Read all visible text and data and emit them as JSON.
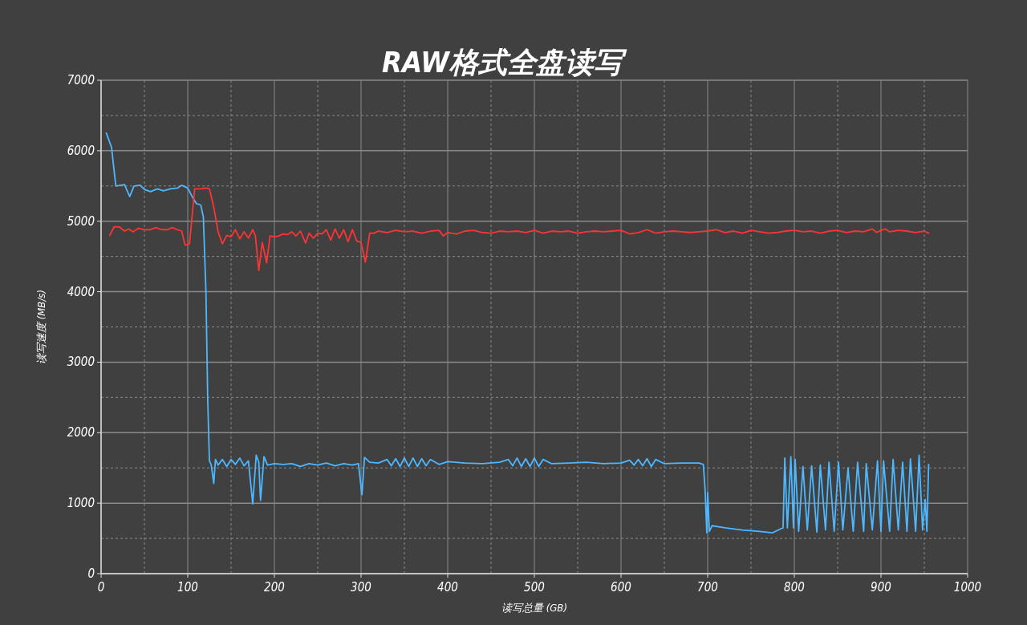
{
  "chart_data": {
    "type": "line",
    "title": "RAW格式全盘读写",
    "xlabel": "读写总量 (GB)",
    "ylabel": "读写速度 (MB/s)",
    "xlim": [
      0,
      1000
    ],
    "ylim": [
      0,
      7000
    ],
    "xticks": [
      0,
      100,
      200,
      300,
      400,
      500,
      600,
      700,
      800,
      900,
      1000
    ],
    "yticks": [
      0,
      1000,
      2000,
      3000,
      4000,
      5000,
      6000,
      7000
    ],
    "grid": true,
    "marker": "none",
    "line_style": "solid",
    "series": [
      {
        "color": "#4db8ff",
        "x": [
          6,
          12,
          17,
          27,
          33,
          38,
          45,
          50,
          57,
          65,
          72,
          80,
          88,
          93,
          100,
          105,
          110,
          115,
          118,
          121,
          123,
          125,
          127,
          130,
          132,
          135,
          140,
          145,
          150,
          155,
          160,
          165,
          170,
          175,
          179,
          182,
          184,
          188,
          192,
          200,
          210,
          220,
          230,
          240,
          250,
          260,
          270,
          280,
          290,
          297,
          301,
          304,
          310,
          320,
          330,
          335,
          340,
          345,
          350,
          355,
          360,
          365,
          370,
          375,
          380,
          390,
          400,
          420,
          440,
          460,
          470,
          475,
          480,
          485,
          490,
          495,
          500,
          505,
          510,
          520,
          540,
          560,
          580,
          600,
          610,
          615,
          620,
          625,
          630,
          635,
          640,
          650,
          670,
          690,
          695,
          697,
          699,
          700,
          702,
          705,
          720,
          740,
          760,
          775,
          785,
          787,
          789,
          792,
          796,
          799,
          801,
          805,
          810,
          815,
          820,
          826,
          830,
          836,
          840,
          846,
          851,
          856,
          862,
          868,
          873,
          880,
          883,
          890,
          896,
          900,
          903,
          910,
          914,
          920,
          925,
          930,
          934,
          940,
          944,
          948,
          951,
          953,
          955
        ],
        "values": [
          6250,
          6050,
          5500,
          5520,
          5350,
          5500,
          5510,
          5450,
          5420,
          5460,
          5430,
          5460,
          5470,
          5510,
          5470,
          5350,
          5250,
          5230,
          5060,
          4000,
          2500,
          1600,
          1550,
          1280,
          1620,
          1540,
          1620,
          1520,
          1620,
          1550,
          1640,
          1530,
          1600,
          990,
          1680,
          1580,
          1040,
          1660,
          1540,
          1560,
          1550,
          1560,
          1520,
          1560,
          1540,
          1570,
          1530,
          1560,
          1540,
          1560,
          1120,
          1650,
          1580,
          1570,
          1620,
          1530,
          1630,
          1520,
          1640,
          1520,
          1640,
          1520,
          1630,
          1530,
          1620,
          1550,
          1590,
          1570,
          1560,
          1580,
          1620,
          1530,
          1640,
          1520,
          1630,
          1520,
          1640,
          1520,
          1620,
          1560,
          1570,
          1580,
          1560,
          1570,
          1610,
          1540,
          1620,
          1530,
          1630,
          1520,
          1620,
          1560,
          1570,
          1570,
          1550,
          1200,
          580,
          1150,
          600,
          680,
          650,
          620,
          600,
          580,
          640,
          650,
          1640,
          650,
          1660,
          650,
          1620,
          600,
          1520,
          620,
          1530,
          590,
          1540,
          620,
          1580,
          600,
          1580,
          620,
          1500,
          600,
          1580,
          600,
          1560,
          620,
          1600,
          600,
          1600,
          600,
          1620,
          620,
          1580,
          600,
          1630,
          600,
          1680,
          620,
          1050,
          600,
          1550
        ]
      },
      {
        "color": "#ff3333",
        "x": [
          10,
          15,
          21,
          27,
          32,
          37,
          43,
          50,
          57,
          63,
          70,
          77,
          82,
          88,
          93,
          97,
          102,
          108,
          115,
          121,
          125,
          130,
          135,
          140,
          145,
          150,
          155,
          160,
          165,
          170,
          175,
          178,
          182,
          186,
          191,
          195,
          200,
          205,
          210,
          215,
          220,
          225,
          230,
          236,
          240,
          245,
          250,
          255,
          260,
          265,
          270,
          275,
          280,
          285,
          290,
          295,
          300,
          305,
          310,
          315,
          320,
          330,
          340,
          350,
          360,
          370,
          380,
          390,
          395,
          400,
          410,
          420,
          430,
          440,
          450,
          460,
          470,
          480,
          490,
          500,
          510,
          520,
          530,
          540,
          550,
          560,
          570,
          580,
          590,
          600,
          610,
          620,
          630,
          640,
          650,
          660,
          670,
          680,
          690,
          700,
          710,
          720,
          730,
          740,
          750,
          760,
          770,
          780,
          790,
          800,
          810,
          820,
          830,
          840,
          850,
          860,
          870,
          880,
          890,
          895,
          900,
          905,
          910,
          920,
          930,
          940,
          950,
          955
        ],
        "values": [
          4800,
          4920,
          4920,
          4860,
          4890,
          4850,
          4900,
          4880,
          4880,
          4910,
          4880,
          4880,
          4910,
          4880,
          4860,
          4660,
          4680,
          5460,
          5460,
          5470,
          5460,
          5200,
          4850,
          4680,
          4800,
          4780,
          4880,
          4750,
          4850,
          4760,
          4880,
          4800,
          4300,
          4700,
          4410,
          4790,
          4780,
          4790,
          4820,
          4810,
          4850,
          4790,
          4860,
          4690,
          4830,
          4760,
          4830,
          4820,
          4880,
          4730,
          4890,
          4760,
          4880,
          4710,
          4880,
          4720,
          4700,
          4420,
          4830,
          4830,
          4860,
          4840,
          4870,
          4850,
          4860,
          4830,
          4860,
          4870,
          4790,
          4840,
          4820,
          4860,
          4870,
          4840,
          4830,
          4860,
          4850,
          4860,
          4840,
          4870,
          4830,
          4860,
          4850,
          4860,
          4830,
          4850,
          4860,
          4850,
          4860,
          4870,
          4820,
          4840,
          4880,
          4830,
          4850,
          4860,
          4850,
          4840,
          4850,
          4860,
          4880,
          4840,
          4860,
          4830,
          4870,
          4850,
          4830,
          4840,
          4860,
          4870,
          4850,
          4860,
          4830,
          4860,
          4870,
          4840,
          4860,
          4850,
          4890,
          4840,
          4870,
          4890,
          4850,
          4870,
          4860,
          4840,
          4860,
          4830
        ]
      }
    ]
  }
}
